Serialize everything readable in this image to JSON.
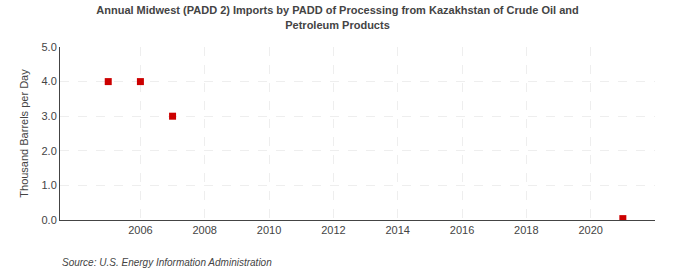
{
  "chart_data": {
    "type": "scatter",
    "title": "Annual Midwest (PADD 2) Imports by PADD of Processing from Kazakhstan of Crude Oil and\nPetroleum Products",
    "ylabel": "Thousand Barrels per Day",
    "annotations": [
      "Source: U.S. Energy Information Administration"
    ],
    "x": [
      2005,
      2006,
      2007,
      2021
    ],
    "values": [
      4.0,
      4.0,
      3.0,
      0.04
    ],
    "color": "#cc0000",
    "marker": "square",
    "xlim": [
      2003.5,
      2022
    ],
    "ylim": [
      0.0,
      5.0
    ],
    "xticks": [
      2006,
      2008,
      2010,
      2012,
      2014,
      2016,
      2018,
      2020
    ],
    "yticks": [
      {
        "value": 0.0,
        "label": "0.0"
      },
      {
        "value": 1.0,
        "label": "1.0"
      },
      {
        "value": 2.0,
        "label": "2.0"
      },
      {
        "value": 3.0,
        "label": "3.0"
      },
      {
        "value": 4.0,
        "label": "4.0"
      },
      {
        "value": 5.0,
        "label": "5.0"
      }
    ],
    "grid": true
  }
}
